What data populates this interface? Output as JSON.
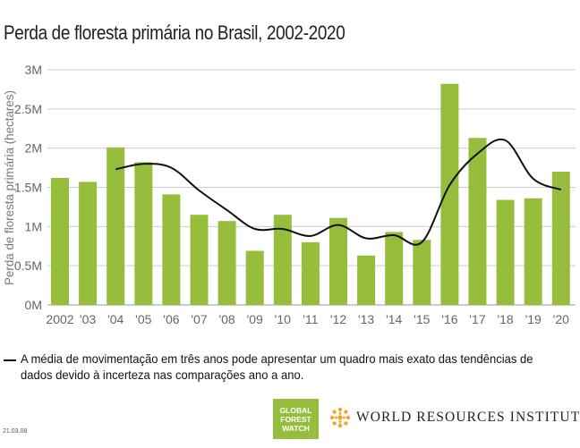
{
  "chart_data": {
    "type": "bar",
    "title": "Perda de floresta primária no Brasil, 2002-2020",
    "xlabel": "",
    "ylabel": "Perda de floresta primária (hectares)",
    "ylim": [
      0,
      3000000
    ],
    "yticks": [
      0,
      500000,
      1000000,
      1500000,
      2000000,
      2500000,
      3000000
    ],
    "ytick_labels": [
      "0M",
      "0.5M",
      "1M",
      "1.5M",
      "2M",
      "2.5M",
      "3M"
    ],
    "categories": [
      "2002",
      "'03",
      "'04",
      "'05",
      "'06",
      "'07",
      "'08",
      "'09",
      "'10",
      "'11",
      "'12",
      "'13",
      "'14",
      "'15",
      "'16",
      "'17",
      "'18",
      "'19",
      "'20"
    ],
    "grid": true,
    "series": [
      {
        "name": "Perda de floresta primária",
        "type": "bar",
        "color": "#97bd3d",
        "values": [
          1620000,
          1570000,
          2010000,
          1820000,
          1410000,
          1150000,
          1070000,
          690000,
          1150000,
          800000,
          1110000,
          630000,
          930000,
          830000,
          2820000,
          2130000,
          1340000,
          1360000,
          1700000
        ]
      },
      {
        "name": "Média de movimentação em três anos",
        "type": "line",
        "color": "#111111",
        "values": [
          null,
          null,
          1730000,
          1800000,
          1750000,
          1460000,
          1210000,
          970000,
          970000,
          880000,
          1020000,
          850000,
          890000,
          800000,
          1530000,
          1930000,
          2100000,
          1610000,
          1470000
        ]
      }
    ]
  },
  "legend": {
    "line_text": "A média de movimentação em três anos pode apresentar um quadro mais exato das tendências de dados devido à incerteza nas comparações ano a ano."
  },
  "footer": {
    "version": "21.03.08",
    "gfw_logo_lines": [
      "GLOBAL",
      "FOREST",
      "WATCH"
    ],
    "wri_name": "WORLD RESOURCES INSTITUTE"
  },
  "colors": {
    "bar": "#97bd3d",
    "line": "#111111",
    "grid": "#cccccc",
    "wri_logo": "#f2a52a"
  }
}
